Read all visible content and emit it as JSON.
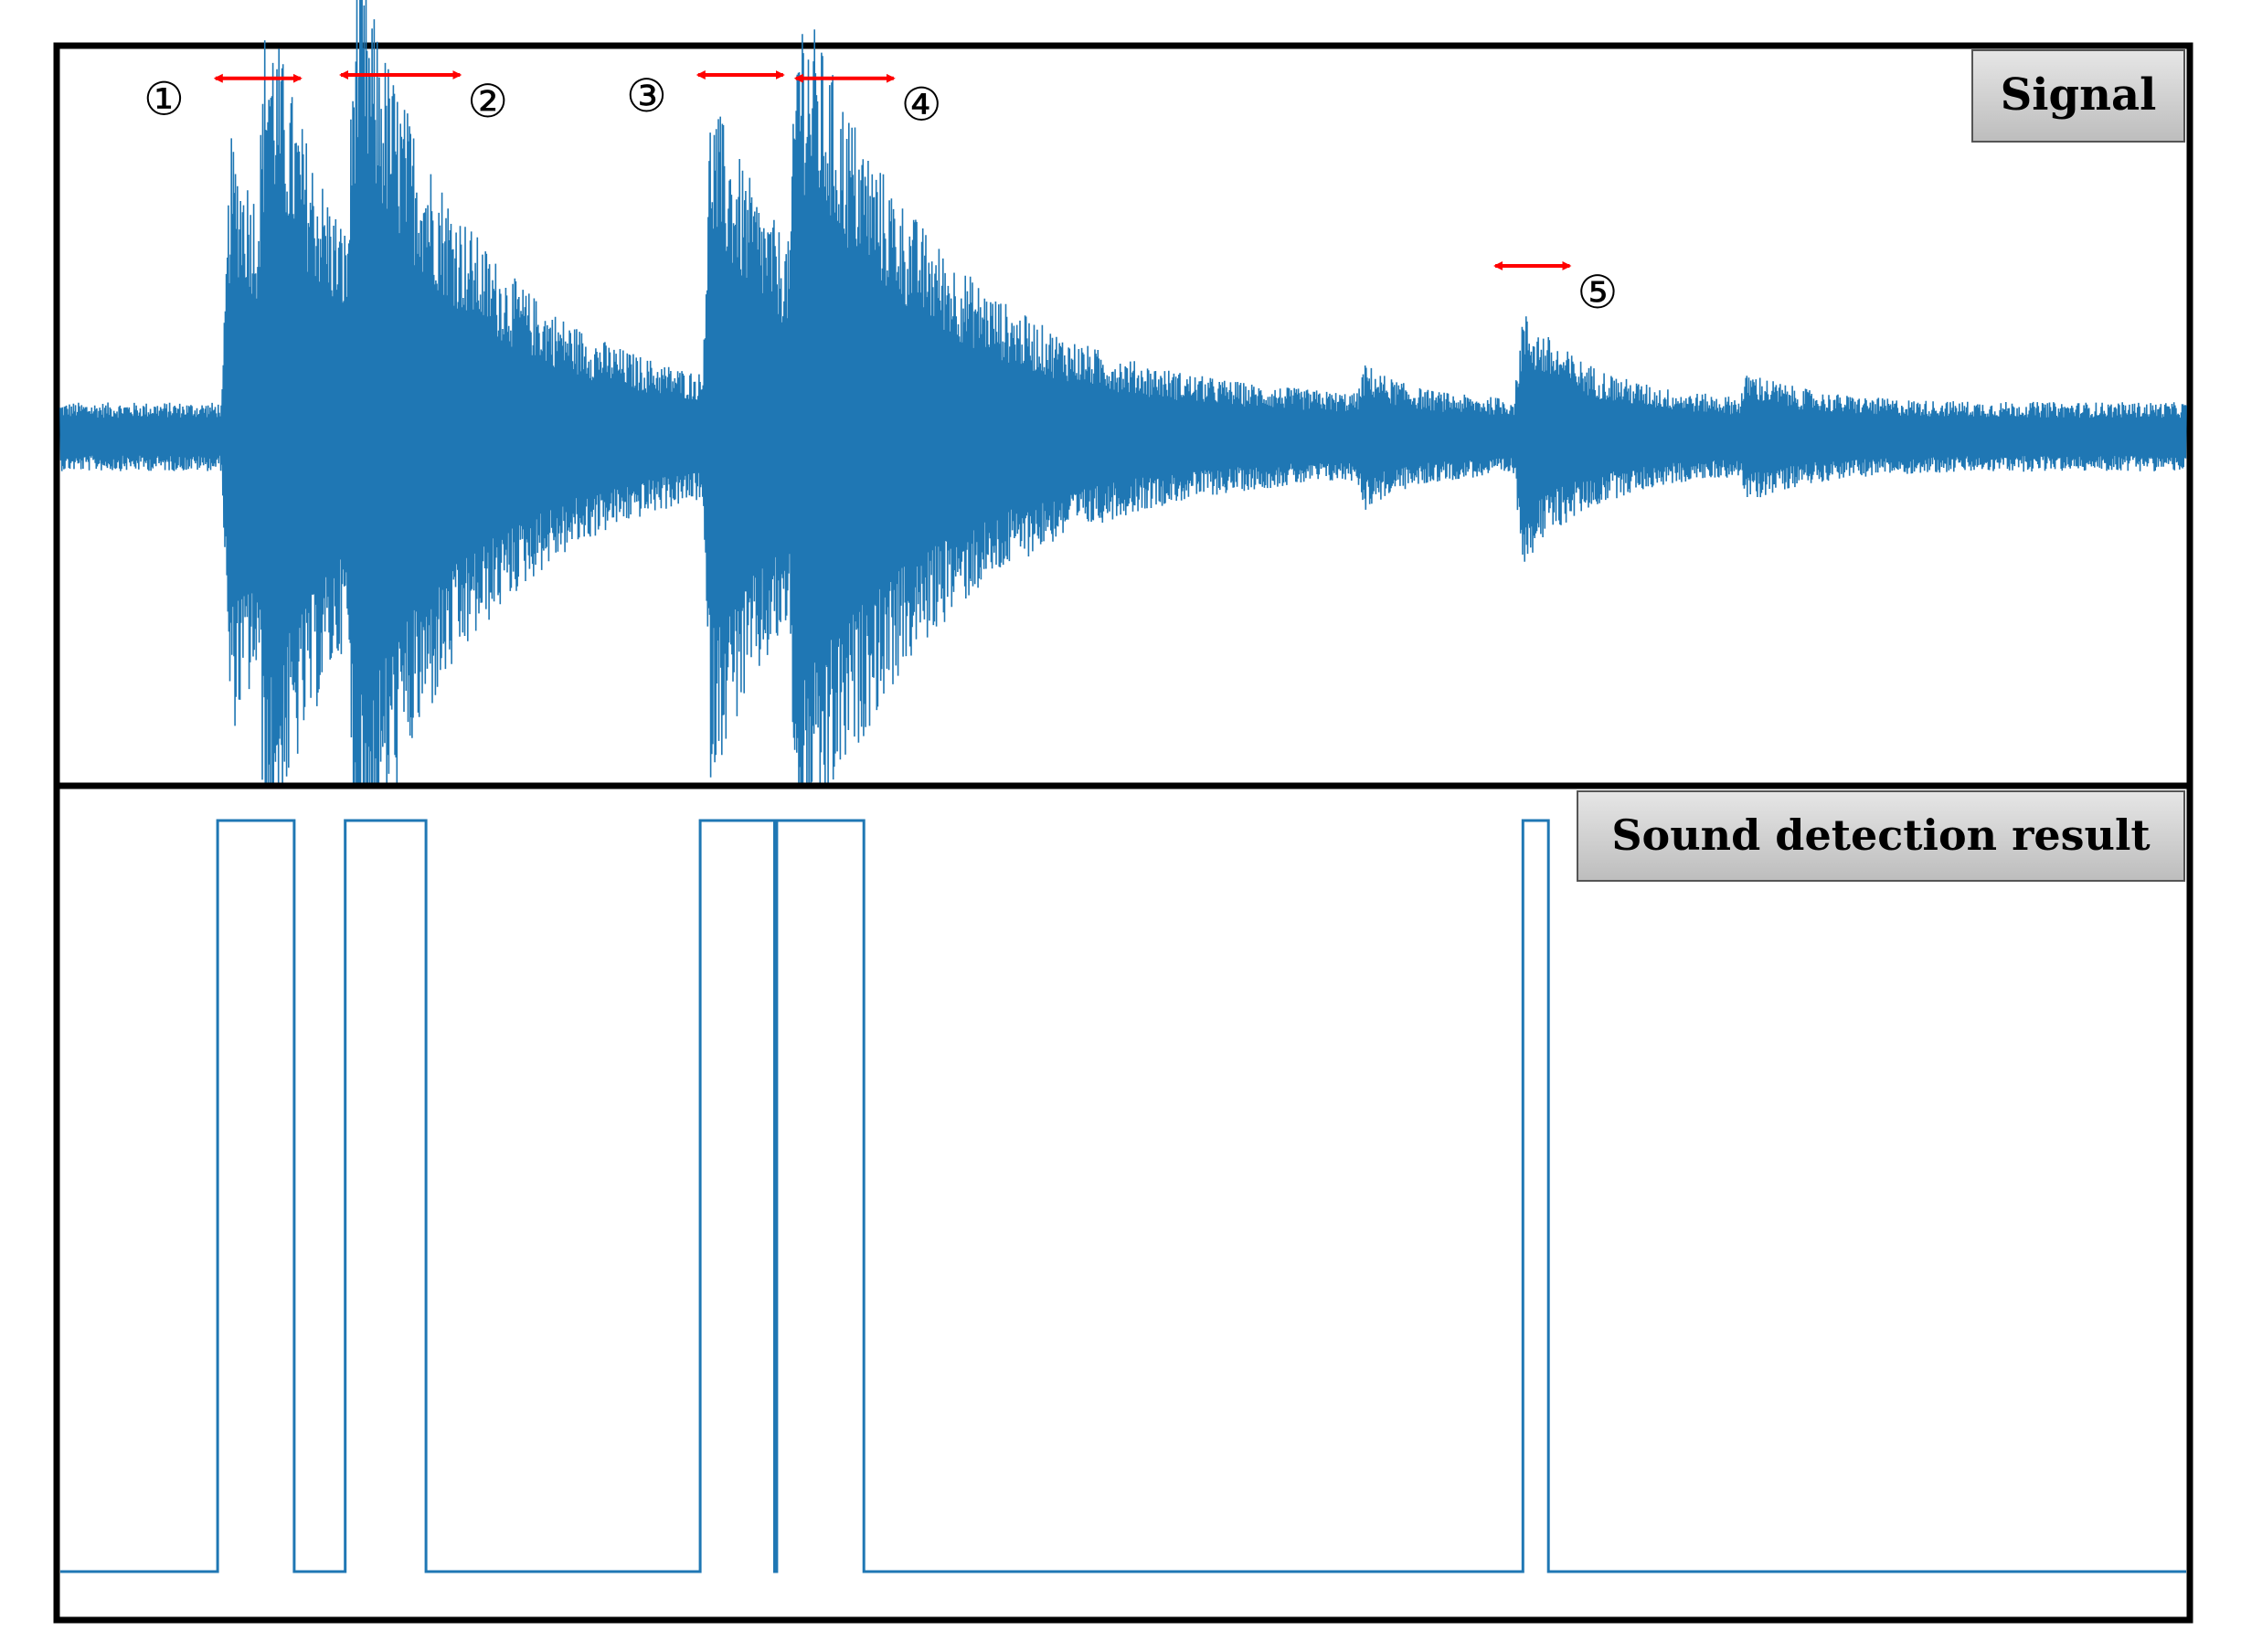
{
  "chart_data": [
    {
      "type": "line",
      "panel_label": "Signal",
      "title": "",
      "xlabel": "",
      "ylabel": "",
      "grid": false,
      "series_color": "#1f77b4",
      "bursts": [
        {
          "marker": "①",
          "onset": 0.076,
          "peak": 0.92,
          "decay": 0.055
        },
        {
          "marker": "",
          "onset": 0.093,
          "peak": 0.78,
          "decay": 0.035
        },
        {
          "marker": "②",
          "onset": 0.135,
          "peak": 1.0,
          "decay": 0.065
        },
        {
          "marker": "③",
          "onset": 0.302,
          "peak": 0.98,
          "decay": 0.055
        },
        {
          "marker": "④",
          "onset": 0.343,
          "peak": 0.92,
          "decay": 0.075
        },
        {
          "marker": "",
          "onset": 0.61,
          "peak": 0.12,
          "decay": 0.02
        },
        {
          "marker": "⑤",
          "onset": 0.684,
          "peak": 0.32,
          "decay": 0.035
        },
        {
          "marker": "",
          "onset": 0.79,
          "peak": 0.1,
          "decay": 0.03
        }
      ],
      "noise_level": 0.11,
      "annotations": [
        {
          "label": "①",
          "x_start": 0.073,
          "x_end": 0.113
        },
        {
          "label": "②",
          "x_start": 0.132,
          "x_end": 0.188
        },
        {
          "label": "③",
          "x_start": 0.3,
          "x_end": 0.34
        },
        {
          "label": "④",
          "x_start": 0.346,
          "x_end": 0.392
        },
        {
          "label": "⑤",
          "x_start": 0.675,
          "x_end": 0.71
        }
      ],
      "annotation_color": "#ff0000"
    },
    {
      "type": "line",
      "panel_label": "Sound detection result",
      "title": "",
      "xlabel": "",
      "ylabel": "",
      "grid": false,
      "series_color": "#1f77b4",
      "ylim": [
        0,
        1
      ],
      "detections": [
        {
          "start": 0.074,
          "end": 0.11
        },
        {
          "start": 0.134,
          "end": 0.172
        },
        {
          "start": 0.301,
          "end": 0.336
        },
        {
          "start": 0.337,
          "end": 0.378
        },
        {
          "start": 0.688,
          "end": 0.7
        }
      ]
    }
  ]
}
